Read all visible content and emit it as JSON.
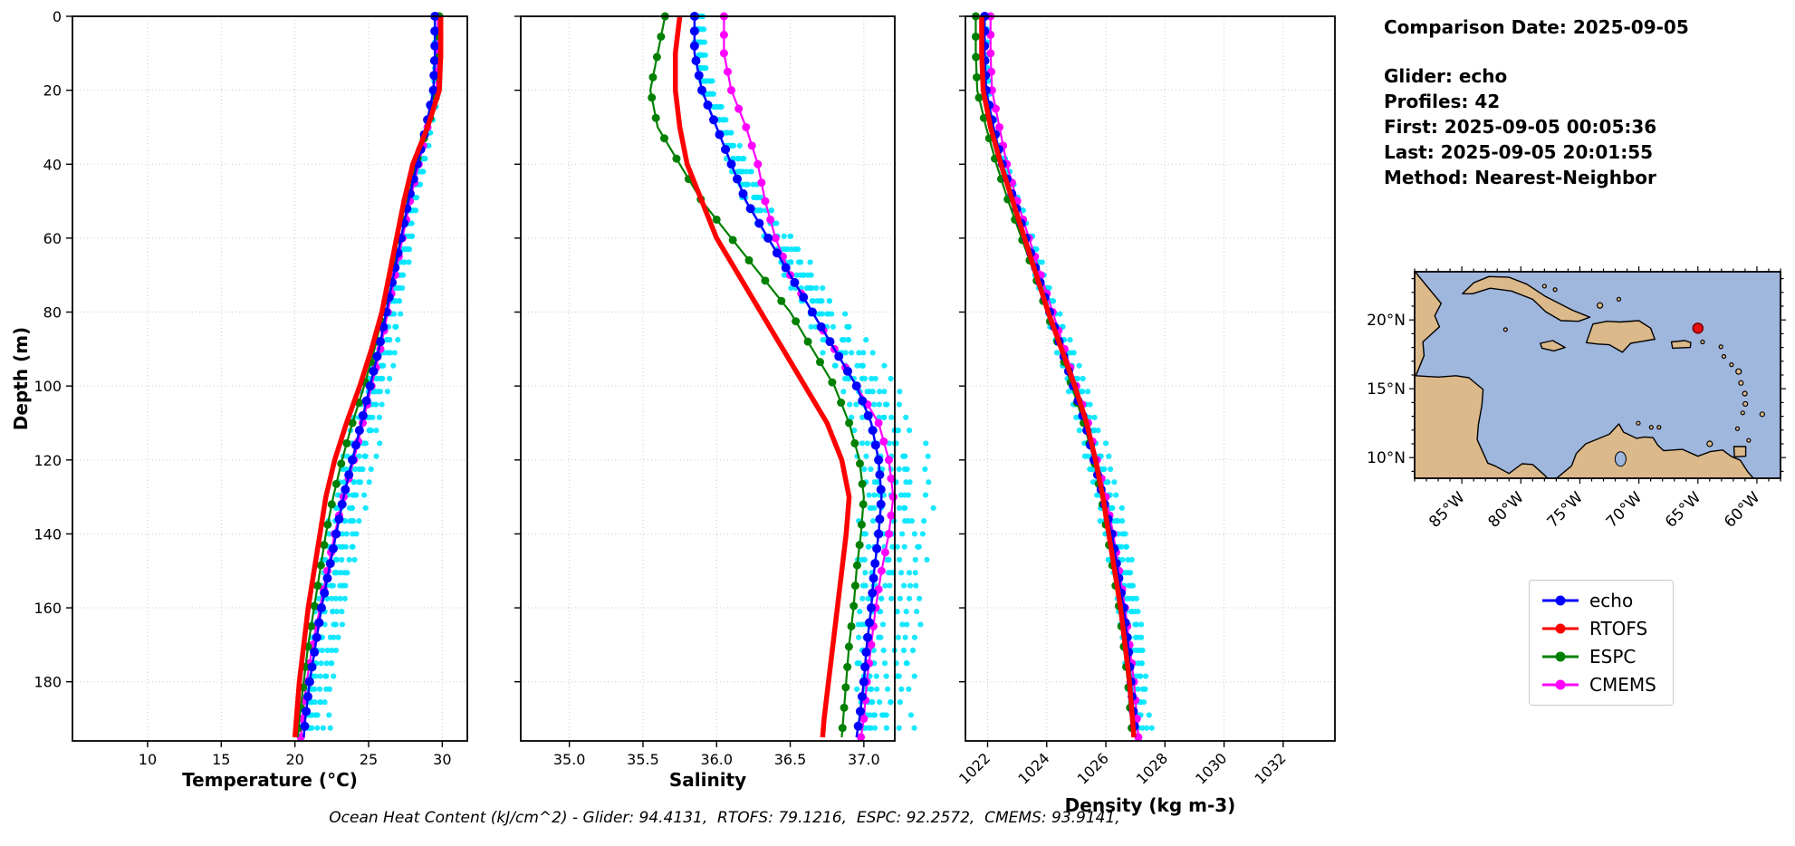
{
  "info_panel": {
    "title": "Comparison Date: 2025-09-05",
    "lines": [
      "Glider: echo",
      "Profiles: 42",
      "First: 2025-09-05 00:05:36",
      "Last: 2025-09-05 20:01:55",
      "Method: Nearest-Neighbor"
    ]
  },
  "footer": "Ocean Heat Content (kJ/cm^2) - Glider: 94.4131,  RTOFS: 79.1216,  ESPC: 92.2572,  CMEMS: 93.9141,",
  "legend": {
    "entries": [
      {
        "label": "echo",
        "color": "#0000ff"
      },
      {
        "label": "RTOFS",
        "color": "#ff0000"
      },
      {
        "label": "ESPC",
        "color": "#008000"
      },
      {
        "label": "CMEMS",
        "color": "#ff00ff"
      }
    ]
  },
  "map": {
    "ocean_color": "#9fb6dd",
    "land_color": "#dbb98a",
    "coast_color": "#000000",
    "lon_min": -89.0,
    "lon_max": -58.0,
    "lat_min": 8.5,
    "lat_max": 23.5,
    "lon_tick_vals": [
      -85,
      -80,
      -75,
      -70,
      -65,
      -60
    ],
    "lon_tick_labels": [
      "85°W",
      "80°W",
      "75°W",
      "70°W",
      "65°W",
      "60°W"
    ],
    "lat_tick_vals": [
      20,
      15,
      10
    ],
    "lat_tick_labels": [
      "20°N",
      "15°N",
      "10°N"
    ],
    "marker": {
      "lon": -65.0,
      "lat": 19.4,
      "color": "#e81010"
    }
  },
  "chart_data": [
    {
      "id": "temperature",
      "type": "line",
      "xlabel": "Temperature (°C)",
      "ylabel": "Depth (m)",
      "xlim": [
        4.9,
        31.7
      ],
      "ylim": [
        0,
        196
      ],
      "xtick_vals": [
        10,
        15,
        20,
        25,
        30
      ],
      "xtick_labels": [
        "10",
        "15",
        "20",
        "25",
        "30"
      ],
      "xtick_rotation": 0,
      "ytick_vals": [
        0,
        20,
        40,
        60,
        80,
        100,
        120,
        140,
        160,
        180
      ],
      "ytick_labels": [
        "0",
        "20",
        "40",
        "60",
        "80",
        "100",
        "120",
        "140",
        "160",
        "180"
      ],
      "show_ytick_labels": true,
      "depths": [
        0,
        10,
        20,
        30,
        40,
        50,
        60,
        70,
        80,
        90,
        100,
        110,
        120,
        130,
        140,
        150,
        160,
        170,
        180,
        190,
        195
      ],
      "series": [
        {
          "name": "echo",
          "color": "#0000ff",
          "width": 2.5,
          "marker_step": 4,
          "marker_size": 5,
          "values": [
            29.5,
            29.5,
            29.4,
            28.9,
            28.3,
            27.7,
            27.2,
            26.7,
            26.2,
            25.7,
            25.1,
            24.5,
            23.9,
            23.3,
            22.8,
            22.3,
            21.8,
            21.4,
            21.0,
            20.7,
            20.6
          ]
        },
        {
          "name": "RTOFS",
          "color": "#ff0000",
          "width": 5.5,
          "marker_step": 0,
          "marker_size": 0,
          "values": [
            29.9,
            29.9,
            29.8,
            29.0,
            28.0,
            27.4,
            26.9,
            26.4,
            25.9,
            25.2,
            24.4,
            23.5,
            22.7,
            22.1,
            21.7,
            21.3,
            20.9,
            20.6,
            20.3,
            20.1,
            20.0
          ]
        },
        {
          "name": "ESPC",
          "color": "#008000",
          "width": 2.2,
          "marker_step": 5.5,
          "marker_size": 4.5,
          "values": [
            29.8,
            29.8,
            29.7,
            29.0,
            28.2,
            27.5,
            27.0,
            26.5,
            26.0,
            25.4,
            24.7,
            23.9,
            23.2,
            22.6,
            22.1,
            21.7,
            21.3,
            20.9,
            20.6,
            20.3,
            20.2
          ]
        },
        {
          "name": "CMEMS",
          "color": "#ff00ff",
          "width": 2.2,
          "marker_step": 5,
          "marker_size": 4.5,
          "values": [
            29.7,
            29.7,
            29.6,
            29.0,
            28.4,
            27.8,
            27.3,
            26.8,
            26.3,
            25.8,
            25.2,
            24.6,
            24.0,
            23.3,
            22.7,
            22.2,
            21.7,
            21.2,
            20.8,
            20.5,
            20.4
          ]
        }
      ],
      "scatter": {
        "label": "glider profiles",
        "base": "echo",
        "color": "#00e5ff",
        "spread": 0.75,
        "bias": 0.3
      }
    },
    {
      "id": "salinity",
      "type": "line",
      "xlabel": "Salinity",
      "ylabel": "",
      "xlim": [
        34.67,
        37.21
      ],
      "ylim": [
        0,
        196
      ],
      "xtick_vals": [
        35.0,
        35.5,
        36.0,
        36.5,
        37.0
      ],
      "xtick_labels": [
        "35.0",
        "35.5",
        "36.0",
        "36.5",
        "37.0"
      ],
      "xtick_rotation": 0,
      "ytick_vals": [
        0,
        20,
        40,
        60,
        80,
        100,
        120,
        140,
        160,
        180
      ],
      "ytick_labels": [
        "0",
        "20",
        "40",
        "60",
        "80",
        "100",
        "120",
        "140",
        "160",
        "180"
      ],
      "show_ytick_labels": false,
      "depths": [
        0,
        10,
        20,
        30,
        40,
        50,
        60,
        70,
        80,
        90,
        100,
        110,
        120,
        130,
        140,
        150,
        160,
        170,
        180,
        190,
        195
      ],
      "series": [
        {
          "name": "echo",
          "color": "#0000ff",
          "width": 2.5,
          "marker_step": 4,
          "marker_size": 5,
          "values": [
            35.85,
            35.85,
            35.9,
            36.0,
            36.1,
            36.2,
            36.35,
            36.5,
            36.65,
            36.8,
            36.95,
            37.05,
            37.1,
            37.12,
            37.1,
            37.07,
            37.05,
            37.02,
            37.0,
            36.97,
            36.95
          ]
        },
        {
          "name": "RTOFS",
          "color": "#ff0000",
          "width": 5.5,
          "marker_step": 0,
          "marker_size": 0,
          "values": [
            35.75,
            35.72,
            35.72,
            35.75,
            35.8,
            35.9,
            36.0,
            36.15,
            36.3,
            36.45,
            36.6,
            36.75,
            36.85,
            36.9,
            36.88,
            36.85,
            36.82,
            36.79,
            36.76,
            36.73,
            36.72
          ]
        },
        {
          "name": "ESPC",
          "color": "#008000",
          "width": 2.2,
          "marker_step": 5.5,
          "marker_size": 4.5,
          "values": [
            35.65,
            35.6,
            35.55,
            35.6,
            35.75,
            35.9,
            36.1,
            36.3,
            36.5,
            36.65,
            36.8,
            36.9,
            36.97,
            37.0,
            36.98,
            36.95,
            36.93,
            36.9,
            36.88,
            36.86,
            36.85
          ]
        },
        {
          "name": "CMEMS",
          "color": "#ff00ff",
          "width": 2.2,
          "marker_step": 5,
          "marker_size": 4.5,
          "values": [
            36.05,
            36.05,
            36.1,
            36.2,
            36.28,
            36.33,
            36.4,
            36.5,
            36.65,
            36.8,
            36.95,
            37.1,
            37.17,
            37.2,
            37.17,
            37.12,
            37.08,
            37.05,
            37.02,
            37.0,
            36.98
          ]
        }
      ],
      "scatter": {
        "label": "glider profiles",
        "base": "echo",
        "color": "#00e5ff",
        "spread": 0.16,
        "bias": 0.35
      }
    },
    {
      "id": "density",
      "type": "line",
      "xlabel": "Density (kg m-3)",
      "ylabel": "",
      "xlim": [
        1021.25,
        1033.75
      ],
      "ylim": [
        0,
        196
      ],
      "xtick_vals": [
        1022,
        1024,
        1026,
        1028,
        1030,
        1032
      ],
      "xtick_labels": [
        "1022",
        "1024",
        "1026",
        "1028",
        "1030",
        "1032"
      ],
      "xtick_rotation": 45,
      "ytick_vals": [
        0,
        20,
        40,
        60,
        80,
        100,
        120,
        140,
        160,
        180
      ],
      "ytick_labels": [
        "0",
        "20",
        "40",
        "60",
        "80",
        "100",
        "120",
        "140",
        "160",
        "180"
      ],
      "show_ytick_labels": false,
      "depths": [
        0,
        10,
        20,
        30,
        40,
        50,
        60,
        70,
        80,
        90,
        100,
        110,
        120,
        130,
        140,
        150,
        160,
        170,
        180,
        190,
        195
      ],
      "series": [
        {
          "name": "echo",
          "color": "#0000ff",
          "width": 2.5,
          "marker_step": 4,
          "marker_size": 5,
          "values": [
            1021.9,
            1021.9,
            1021.95,
            1022.2,
            1022.5,
            1022.9,
            1023.3,
            1023.7,
            1024.1,
            1024.5,
            1024.9,
            1025.3,
            1025.6,
            1025.9,
            1026.2,
            1026.4,
            1026.6,
            1026.75,
            1026.85,
            1026.95,
            1027.0
          ]
        },
        {
          "name": "RTOFS",
          "color": "#ff0000",
          "width": 5.5,
          "marker_step": 0,
          "marker_size": 0,
          "values": [
            1021.8,
            1021.8,
            1021.85,
            1022.1,
            1022.45,
            1022.85,
            1023.25,
            1023.65,
            1024.05,
            1024.5,
            1024.95,
            1025.35,
            1025.65,
            1025.9,
            1026.1,
            1026.3,
            1026.5,
            1026.65,
            1026.8,
            1026.9,
            1026.95
          ]
        },
        {
          "name": "ESPC",
          "color": "#008000",
          "width": 2.2,
          "marker_step": 5.5,
          "marker_size": 4.5,
          "values": [
            1021.6,
            1021.6,
            1021.65,
            1021.95,
            1022.3,
            1022.7,
            1023.15,
            1023.6,
            1024.0,
            1024.45,
            1024.85,
            1025.25,
            1025.6,
            1025.85,
            1026.05,
            1026.25,
            1026.45,
            1026.6,
            1026.75,
            1026.85,
            1026.9
          ]
        },
        {
          "name": "CMEMS",
          "color": "#ff00ff",
          "width": 2.2,
          "marker_step": 5,
          "marker_size": 4.5,
          "values": [
            1022.1,
            1022.1,
            1022.15,
            1022.4,
            1022.65,
            1023.0,
            1023.4,
            1023.8,
            1024.2,
            1024.6,
            1025.0,
            1025.4,
            1025.7,
            1026.0,
            1026.25,
            1026.45,
            1026.65,
            1026.8,
            1026.95,
            1027.05,
            1027.1
          ]
        }
      ],
      "scatter": {
        "label": "glider profiles",
        "base": "echo",
        "color": "#00e5ff",
        "spread": 0.27,
        "bias": 0.15
      }
    }
  ]
}
